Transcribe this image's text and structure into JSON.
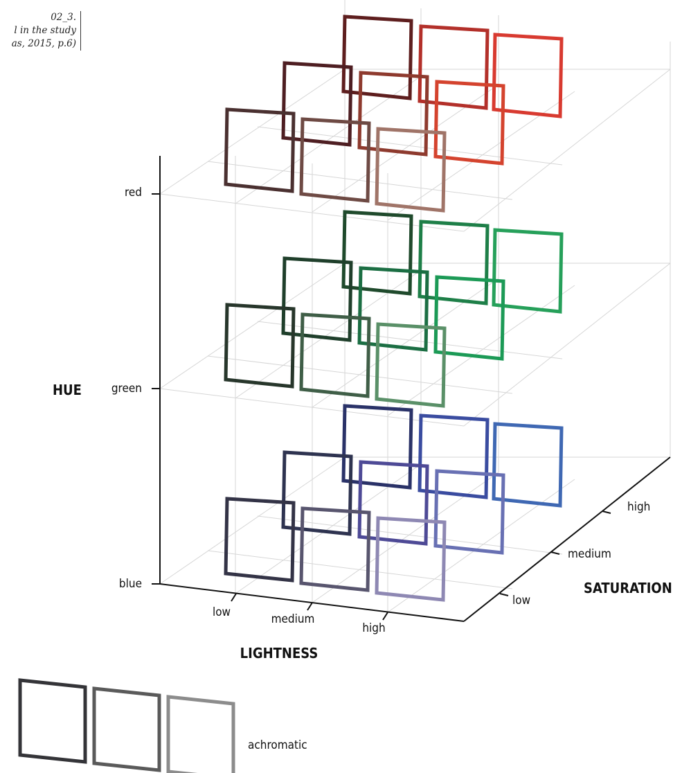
{
  "caption": {
    "lines": [
      "02_3.",
      "l in the study",
      "as, 2015, p.6)"
    ]
  },
  "axes": {
    "hue": {
      "title": "HUE",
      "ticks": [
        "red",
        "green",
        "blue"
      ]
    },
    "lightness": {
      "title": "LIGHTNESS",
      "ticks": [
        "low",
        "medium",
        "high"
      ]
    },
    "saturation": {
      "title": "SATURATION",
      "ticks": [
        "low",
        "medium",
        "high"
      ]
    }
  },
  "achromatic": {
    "label": "achromatic",
    "colors": [
      "#343438",
      "#5a5a5a",
      "#8c8c8c"
    ]
  },
  "swatches": {
    "red": [
      [
        "#4a3030",
        "#6e4a44",
        "#a07468"
      ],
      [
        "#4e1e22",
        "#8e3a2e",
        "#d4432e"
      ],
      [
        "#5e1e1e",
        "#b3302a",
        "#d83a30"
      ]
    ],
    "green": [
      [
        "#27362b",
        "#3f5e47",
        "#5a9068"
      ],
      [
        "#1f3f2b",
        "#1b6e43",
        "#1c9a56"
      ],
      [
        "#1f4a2c",
        "#1e7f48",
        "#26a05a"
      ]
    ],
    "blue": [
      [
        "#333346",
        "#58556e",
        "#8e88b3"
      ],
      [
        "#2e3350",
        "#4e4a96",
        "#6870b3"
      ],
      [
        "#2a3268",
        "#3a4ca0",
        "#3f68b3"
      ]
    ]
  }
}
